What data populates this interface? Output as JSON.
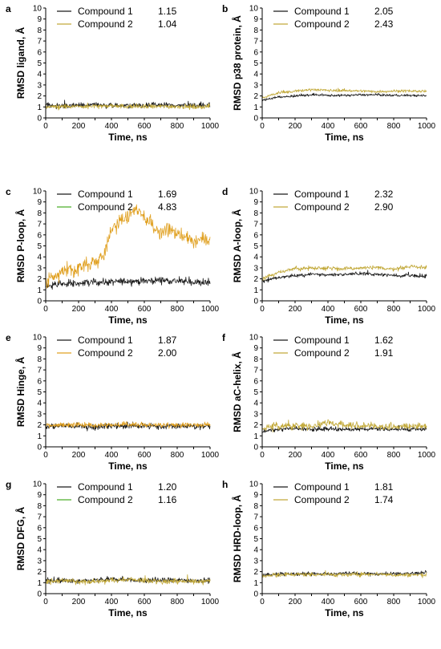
{
  "colors": {
    "compound1": "#1a1a1a",
    "compound2_olive": "#c2a93a",
    "compound2_orange": "#e0a020",
    "compound2_green": "#4caf2a"
  },
  "chart_data": [
    {
      "type": "line",
      "letter": "a",
      "xlabel": "Time, ns",
      "ylabel": "RMSD ligand, Å",
      "xlim": [
        0,
        1000
      ],
      "ylim": [
        0,
        10
      ],
      "xticks": [
        "0",
        "200",
        "400",
        "600",
        "800",
        "1000"
      ],
      "yticks": [
        "0",
        "1",
        "2",
        "3",
        "4",
        "5",
        "6",
        "7",
        "8",
        "9",
        "10"
      ],
      "legend_position": "top",
      "series": [
        {
          "name": "Compound 1",
          "value": "1.15",
          "color": "#1a1a1a",
          "mean": 1.15,
          "noise": 0.22,
          "x": [
            0,
            100,
            200,
            300,
            400,
            500,
            600,
            700,
            800,
            900,
            1000
          ],
          "y": [
            1.2,
            1.1,
            1.15,
            1.2,
            1.1,
            1.15,
            1.15,
            1.2,
            1.15,
            1.15,
            1.1
          ]
        },
        {
          "name": "Compound 2",
          "value": "1.04",
          "color": "#c2a93a",
          "mean": 1.04,
          "noise": 0.2,
          "x": [
            0,
            100,
            200,
            300,
            400,
            500,
            600,
            700,
            800,
            900,
            1000
          ],
          "y": [
            1.0,
            1.0,
            1.05,
            1.05,
            1.1,
            1.05,
            1.0,
            1.05,
            1.05,
            1.0,
            1.05
          ]
        }
      ]
    },
    {
      "type": "line",
      "letter": "b",
      "xlabel": "Time, ns",
      "ylabel": "RMSD p38 protein, Å",
      "xlim": [
        0,
        1000
      ],
      "ylim": [
        0,
        10
      ],
      "xticks": [
        "0",
        "200",
        "400",
        "600",
        "800",
        "1000"
      ],
      "yticks": [
        "0",
        "1",
        "2",
        "3",
        "4",
        "5",
        "6",
        "7",
        "8",
        "9",
        "10"
      ],
      "legend_position": "top",
      "series": [
        {
          "name": "Compound 1",
          "value": "2.05",
          "color": "#1a1a1a",
          "mean": 2.05,
          "noise": 0.1,
          "x": [
            0,
            100,
            200,
            300,
            400,
            500,
            600,
            700,
            800,
            900,
            1000
          ],
          "y": [
            1.6,
            1.9,
            2.0,
            2.1,
            2.05,
            2.05,
            2.1,
            2.1,
            2.05,
            2.05,
            2.0
          ]
        },
        {
          "name": "Compound 2",
          "value": "2.43",
          "color": "#c2a93a",
          "mean": 2.43,
          "noise": 0.12,
          "x": [
            0,
            100,
            200,
            300,
            400,
            500,
            600,
            700,
            800,
            900,
            1000
          ],
          "y": [
            1.8,
            2.3,
            2.4,
            2.6,
            2.5,
            2.5,
            2.45,
            2.4,
            2.45,
            2.45,
            2.4
          ]
        }
      ]
    },
    {
      "type": "line",
      "letter": "c",
      "xlabel": "Time, ns",
      "ylabel": "RMSD P-loop, Å",
      "xlim": [
        0,
        1000
      ],
      "ylim": [
        0,
        10
      ],
      "xticks": [
        "0",
        "200",
        "400",
        "600",
        "800",
        "1000"
      ],
      "yticks": [
        "0",
        "1",
        "2",
        "3",
        "4",
        "5",
        "6",
        "7",
        "8",
        "9",
        "10"
      ],
      "legend_position": "top",
      "series": [
        {
          "name": "Compound 1",
          "value": "1.69",
          "color": "#1a1a1a",
          "mean": 1.69,
          "noise": 0.3,
          "x": [
            0,
            100,
            200,
            300,
            400,
            500,
            600,
            700,
            800,
            900,
            1000
          ],
          "y": [
            1.4,
            1.5,
            1.6,
            1.7,
            1.7,
            1.8,
            1.8,
            1.9,
            1.8,
            1.7,
            1.6
          ]
        },
        {
          "name": "Compound 2",
          "value": "4.83",
          "color": "#e0a020",
          "legend_color": "#4caf2a",
          "mean": 4.83,
          "noise": 0.6,
          "x": [
            0,
            50,
            100,
            150,
            200,
            250,
            300,
            350,
            400,
            450,
            500,
            550,
            600,
            650,
            700,
            750,
            800,
            850,
            900,
            950,
            1000
          ],
          "y": [
            1.8,
            2.2,
            2.6,
            2.8,
            3.0,
            3.2,
            3.6,
            4.0,
            6.5,
            7.2,
            7.8,
            8.2,
            7.6,
            7.0,
            6.2,
            6.6,
            6.0,
            5.8,
            5.4,
            5.6,
            5.5
          ]
        }
      ]
    },
    {
      "type": "line",
      "letter": "d",
      "xlabel": "Time, ns",
      "ylabel": "RMSD A-loop, Å",
      "xlim": [
        0,
        1000
      ],
      "ylim": [
        0,
        10
      ],
      "xticks": [
        "0",
        "200",
        "400",
        "600",
        "800",
        "1000"
      ],
      "yticks": [
        "0",
        "1",
        "2",
        "3",
        "4",
        "5",
        "6",
        "7",
        "8",
        "9",
        "10"
      ],
      "legend_position": "top",
      "series": [
        {
          "name": "Compound 1",
          "value": "2.32",
          "color": "#1a1a1a",
          "mean": 2.32,
          "noise": 0.15,
          "x": [
            0,
            100,
            200,
            300,
            400,
            500,
            600,
            700,
            800,
            900,
            1000
          ],
          "y": [
            1.8,
            2.1,
            2.3,
            2.4,
            2.4,
            2.4,
            2.5,
            2.4,
            2.3,
            2.3,
            2.2
          ]
        },
        {
          "name": "Compound 2",
          "value": "2.90",
          "color": "#c2a93a",
          "mean": 2.9,
          "noise": 0.18,
          "x": [
            0,
            100,
            200,
            300,
            400,
            500,
            600,
            700,
            800,
            900,
            1000
          ],
          "y": [
            2.0,
            2.6,
            2.9,
            3.0,
            3.0,
            2.9,
            3.0,
            3.0,
            2.9,
            3.1,
            3.1
          ]
        }
      ]
    },
    {
      "type": "line",
      "letter": "e",
      "xlabel": "Time, ns",
      "ylabel": "RMSD Hinge, Å",
      "xlim": [
        0,
        1000
      ],
      "ylim": [
        0,
        10
      ],
      "xticks": [
        "0",
        "200",
        "400",
        "600",
        "800",
        "1000"
      ],
      "yticks": [
        "0",
        "1",
        "2",
        "3",
        "4",
        "5",
        "6",
        "7",
        "8",
        "9",
        "10"
      ],
      "legend_position": "top",
      "series": [
        {
          "name": "Compound 1",
          "value": "1.87",
          "color": "#1a1a1a",
          "mean": 1.87,
          "noise": 0.25,
          "x": [
            0,
            100,
            200,
            300,
            400,
            500,
            600,
            700,
            800,
            900,
            1000
          ],
          "y": [
            1.8,
            1.9,
            1.9,
            1.8,
            1.9,
            1.9,
            1.85,
            1.9,
            1.9,
            1.85,
            1.8
          ]
        },
        {
          "name": "Compound 2",
          "value": "2.00",
          "color": "#e0a020",
          "mean": 2.0,
          "noise": 0.2,
          "x": [
            0,
            100,
            200,
            300,
            400,
            500,
            600,
            700,
            800,
            900,
            1000
          ],
          "y": [
            1.9,
            2.0,
            2.0,
            2.0,
            2.0,
            2.05,
            2.0,
            2.0,
            2.0,
            2.0,
            2.0
          ]
        }
      ]
    },
    {
      "type": "line",
      "letter": "f",
      "xlabel": "Time, ns",
      "ylabel": "RMSD aC-helix, Å",
      "xlim": [
        0,
        1000
      ],
      "ylim": [
        0,
        10
      ],
      "xticks": [
        "0",
        "200",
        "400",
        "600",
        "800",
        "1000"
      ],
      "yticks": [
        "0",
        "1",
        "2",
        "3",
        "4",
        "5",
        "6",
        "7",
        "8",
        "9",
        "10"
      ],
      "legend_position": "top",
      "series": [
        {
          "name": "Compound 1",
          "value": "1.62",
          "color": "#1a1a1a",
          "mean": 1.62,
          "noise": 0.18,
          "x": [
            0,
            100,
            200,
            300,
            400,
            500,
            600,
            700,
            800,
            900,
            1000
          ],
          "y": [
            1.4,
            1.6,
            1.65,
            1.6,
            1.65,
            1.6,
            1.6,
            1.65,
            1.6,
            1.6,
            1.6
          ]
        },
        {
          "name": "Compound 2",
          "value": "1.91",
          "color": "#c2a93a",
          "mean": 1.91,
          "noise": 0.3,
          "x": [
            0,
            100,
            200,
            300,
            400,
            500,
            600,
            700,
            800,
            900,
            1000
          ],
          "y": [
            1.6,
            1.9,
            1.9,
            1.9,
            2.2,
            2.0,
            1.9,
            1.9,
            1.8,
            1.9,
            1.9
          ]
        }
      ]
    },
    {
      "type": "line",
      "letter": "g",
      "xlabel": "Time, ns",
      "ylabel": "RMSD DFG, Å",
      "xlim": [
        0,
        1000
      ],
      "ylim": [
        0,
        10
      ],
      "xticks": [
        "0",
        "200",
        "400",
        "600",
        "800",
        "1000"
      ],
      "yticks": [
        "0",
        "1",
        "2",
        "3",
        "4",
        "5",
        "6",
        "7",
        "8",
        "9",
        "10"
      ],
      "legend_position": "top",
      "series": [
        {
          "name": "Compound 1",
          "value": "1.20",
          "color": "#1a1a1a",
          "mean": 1.2,
          "noise": 0.22,
          "x": [
            0,
            100,
            200,
            300,
            400,
            500,
            600,
            700,
            800,
            900,
            1000
          ],
          "y": [
            1.2,
            1.2,
            1.1,
            1.2,
            1.3,
            1.3,
            1.2,
            1.2,
            1.2,
            1.2,
            1.2
          ]
        },
        {
          "name": "Compound 2",
          "value": "1.16",
          "color": "#c2a93a",
          "legend_color": "#4caf2a",
          "mean": 1.16,
          "noise": 0.22,
          "x": [
            0,
            100,
            200,
            300,
            400,
            500,
            600,
            700,
            800,
            900,
            1000
          ],
          "y": [
            1.1,
            1.2,
            1.1,
            1.1,
            1.2,
            1.3,
            1.2,
            1.1,
            1.1,
            1.1,
            1.2
          ]
        }
      ]
    },
    {
      "type": "line",
      "letter": "h",
      "xlabel": "Time, ns",
      "ylabel": "RMSD HRD-loop, Å",
      "xlim": [
        0,
        1000
      ],
      "ylim": [
        0,
        10
      ],
      "xticks": [
        "0",
        "200",
        "400",
        "600",
        "800",
        "1000"
      ],
      "yticks": [
        "0",
        "1",
        "2",
        "3",
        "4",
        "5",
        "6",
        "7",
        "8",
        "9",
        "10"
      ],
      "legend_position": "top",
      "series": [
        {
          "name": "Compound 1",
          "value": "1.81",
          "color": "#1a1a1a",
          "mean": 1.81,
          "noise": 0.15,
          "x": [
            0,
            100,
            200,
            300,
            400,
            500,
            600,
            700,
            800,
            900,
            1000
          ],
          "y": [
            1.7,
            1.8,
            1.8,
            1.8,
            1.8,
            1.85,
            1.8,
            1.8,
            1.8,
            1.85,
            1.9
          ]
        },
        {
          "name": "Compound 2",
          "value": "1.74",
          "color": "#c2a93a",
          "mean": 1.74,
          "noise": 0.18,
          "x": [
            0,
            100,
            200,
            300,
            400,
            500,
            600,
            700,
            800,
            900,
            1000
          ],
          "y": [
            1.6,
            1.7,
            1.75,
            1.75,
            1.75,
            1.7,
            1.75,
            1.8,
            1.7,
            1.7,
            1.7
          ]
        }
      ]
    }
  ]
}
